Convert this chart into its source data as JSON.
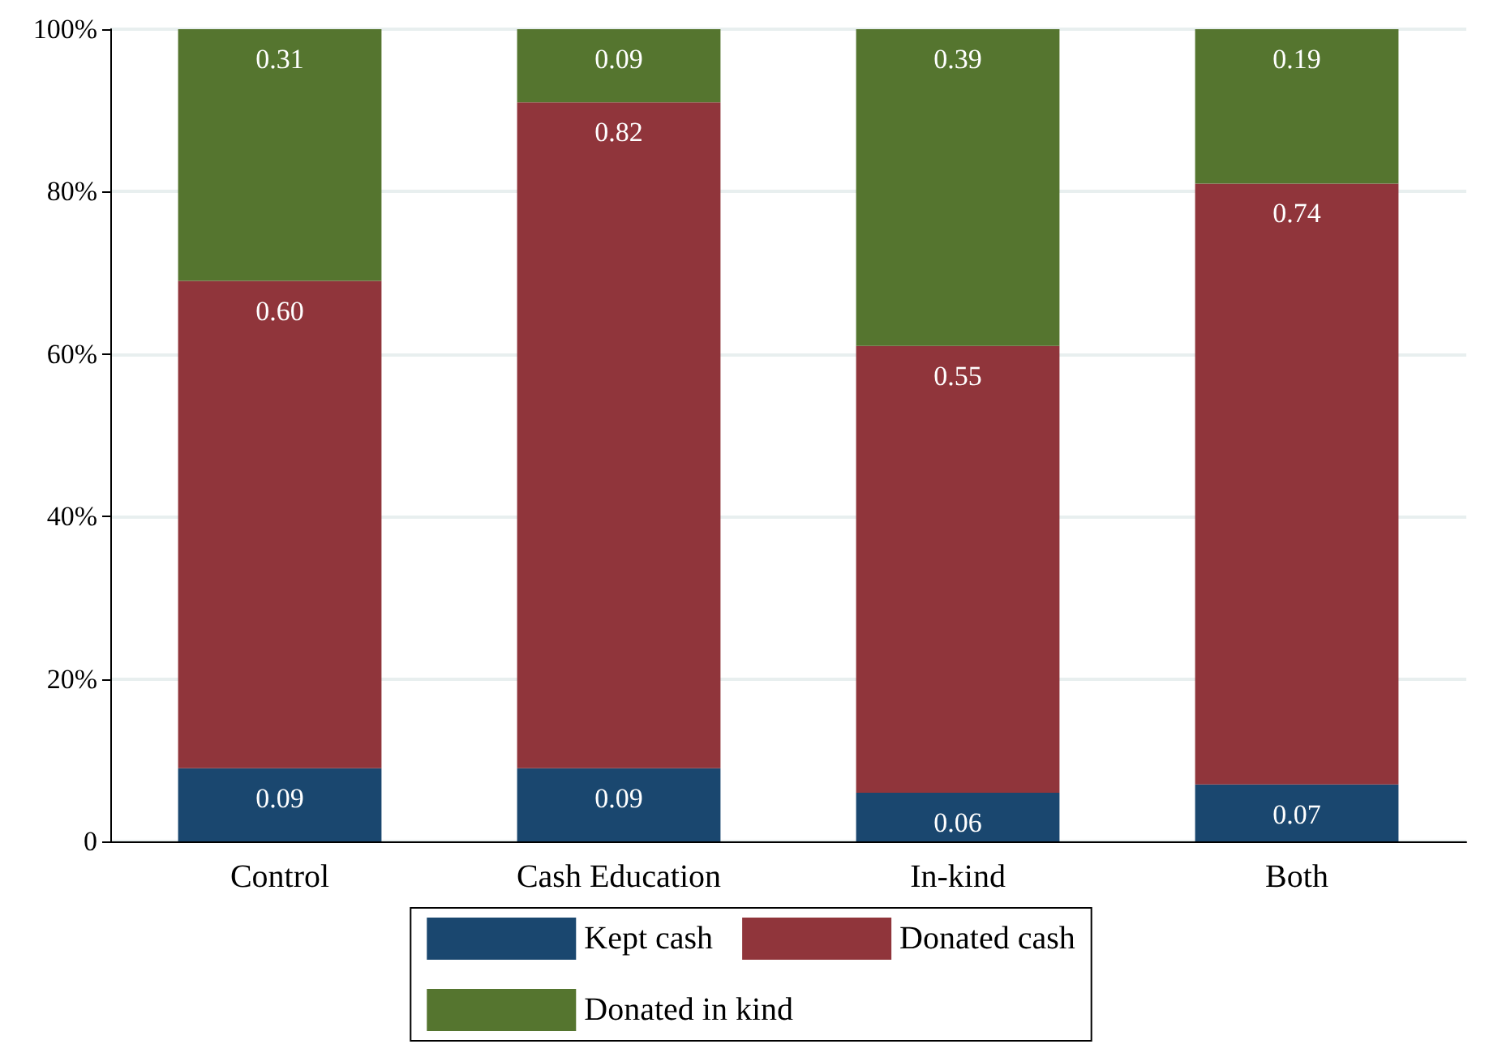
{
  "chart_data": {
    "type": "bar",
    "stacked": true,
    "categories": [
      "Control",
      "Cash Education",
      "In-kind",
      "Both"
    ],
    "series": [
      {
        "name": "Kept cash",
        "color": "#1a476f",
        "values": [
          0.09,
          0.09,
          0.06,
          0.07
        ],
        "value_labels": [
          "0.09",
          "0.09",
          "0.06",
          "0.07"
        ]
      },
      {
        "name": "Donated cash",
        "color": "#90353b",
        "values": [
          0.6,
          0.82,
          0.55,
          0.74
        ],
        "value_labels": [
          "0.60",
          "0.82",
          "0.55",
          "0.74"
        ]
      },
      {
        "name": "Donated in kind",
        "color": "#55752f",
        "values": [
          0.31,
          0.09,
          0.39,
          0.19
        ],
        "value_labels": [
          "0.31",
          "0.09",
          "0.39",
          "0.19"
        ]
      }
    ],
    "ylim": [
      0,
      1
    ],
    "yticks": [
      0,
      {
        "value": 0.2,
        "label": "20%"
      },
      {
        "value": 0.4,
        "label": "40%"
      },
      {
        "value": 0.6,
        "label": "60%"
      },
      {
        "value": 0.8,
        "label": "80%"
      },
      {
        "value": 1,
        "label": "100%"
      }
    ],
    "grid": "y",
    "legend": "bottom"
  }
}
